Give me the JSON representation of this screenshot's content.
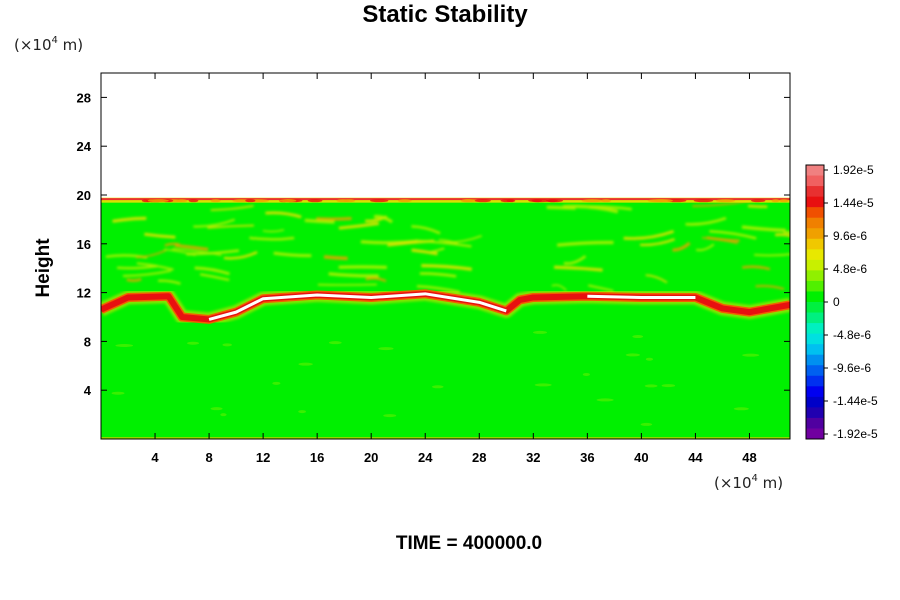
{
  "chart_data": {
    "type": "heatmap",
    "title": "Static Stability",
    "ylabel": "Height",
    "xlabel": "",
    "x_unit": {
      "prefix": "(×10",
      "exp": "4",
      "suffix": " m)"
    },
    "y_unit": {
      "prefix": "(×10",
      "exp": "4",
      "suffix": " m)"
    },
    "xlim": [
      0,
      51
    ],
    "ylim": [
      0,
      30
    ],
    "xticks": [
      4,
      8,
      12,
      16,
      20,
      24,
      28,
      32,
      36,
      40,
      44,
      48
    ],
    "yticks": [
      4,
      8,
      12,
      16,
      20,
      24,
      28
    ],
    "colorbar": {
      "labels": [
        "1.92e-5",
        "1.44e-5",
        "9.6e-6",
        "4.8e-6",
        "0",
        "-4.8e-6",
        "-9.6e-6",
        "-1.44e-5",
        "-1.92e-5"
      ],
      "min": -1.92e-05,
      "max": 1.92e-05,
      "colors_top_to_bottom": [
        "#f08080",
        "#f06060",
        "#e83030",
        "#e81010",
        "#f05000",
        "#f08000",
        "#f0a000",
        "#f0c800",
        "#e8e800",
        "#c8f000",
        "#90f000",
        "#50f000",
        "#00f000",
        "#00f040",
        "#00f080",
        "#00f0c0",
        "#00e0e0",
        "#00c0f0",
        "#0090f0",
        "#0060f0",
        "#0030f0",
        "#0000f0",
        "#0000c8",
        "#2000b0",
        "#5000a0",
        "#7000a0"
      ]
    },
    "field": {
      "background_value": 0,
      "active_layer_height": [
        0,
        19.7
      ],
      "stable_band_height": [
        9.5,
        12
      ],
      "upper_boundary_height": 19.7,
      "band_centerline": [
        [
          0,
          10.6
        ],
        [
          2,
          11.6
        ],
        [
          5,
          11.7
        ],
        [
          6,
          10.0
        ],
        [
          8,
          9.8
        ],
        [
          10,
          10.4
        ],
        [
          12,
          11.5
        ],
        [
          16,
          11.8
        ],
        [
          20,
          11.6
        ],
        [
          24,
          11.9
        ],
        [
          28,
          11.2
        ],
        [
          30,
          10.5
        ],
        [
          31,
          11.4
        ],
        [
          32,
          11.6
        ],
        [
          36,
          11.7
        ],
        [
          40,
          11.6
        ],
        [
          44,
          11.6
        ],
        [
          46,
          10.7
        ],
        [
          48,
          10.4
        ],
        [
          51,
          11.0
        ]
      ],
      "peak_segments": [
        [
          7,
          30.5
        ],
        [
          36,
          44
        ]
      ]
    }
  },
  "time_label": "TIME = 400000.0"
}
